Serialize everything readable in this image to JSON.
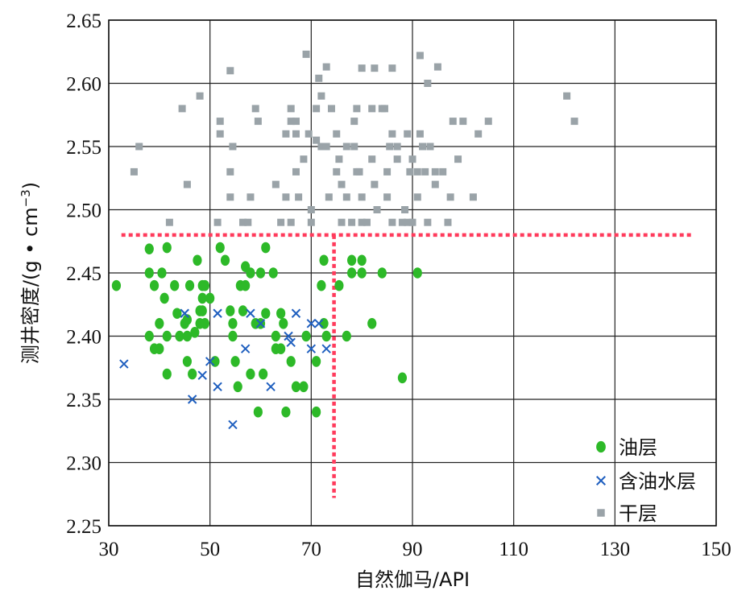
{
  "chart_data": {
    "type": "scatter",
    "xlabel": "自然伽马/API",
    "ylabel": "测井密度/(g·cm⁻³)",
    "ylabel_text": "测井密度/(g • cm",
    "ylabel_sup": "−3",
    "ylabel_close": ")",
    "xlim": [
      30,
      150
    ],
    "ylim": [
      2.25,
      2.65
    ],
    "xticks": [
      "30",
      "50",
      "70",
      "90",
      "110",
      "130",
      "150"
    ],
    "yticks": [
      "2.25",
      "2.30",
      "2.35",
      "2.40",
      "2.45",
      "2.50",
      "2.55",
      "2.60",
      "2.65"
    ],
    "grid": true,
    "legend_position": "bottom-right",
    "cutoff_lines": {
      "density": 2.48,
      "gamma": 74.5,
      "color": "#ff3b5c"
    },
    "series": [
      {
        "name": "油层",
        "marker": "circle",
        "color": "#2db928",
        "points": [
          [
            31.5,
            2.44
          ],
          [
            38,
            2.469
          ],
          [
            38,
            2.45
          ],
          [
            39,
            2.44
          ],
          [
            38,
            2.4
          ],
          [
            39,
            2.39
          ],
          [
            40,
            2.39
          ],
          [
            40,
            2.41
          ],
          [
            40.5,
            2.45
          ],
          [
            41,
            2.43
          ],
          [
            41.5,
            2.47
          ],
          [
            41.5,
            2.4
          ],
          [
            41.5,
            2.37
          ],
          [
            43,
            2.44
          ],
          [
            43.5,
            2.418
          ],
          [
            44,
            2.4
          ],
          [
            45,
            2.41
          ],
          [
            45.5,
            2.413
          ],
          [
            45.5,
            2.4
          ],
          [
            45.5,
            2.38
          ],
          [
            46,
            2.44
          ],
          [
            46.5,
            2.37
          ],
          [
            47,
            2.403
          ],
          [
            47.5,
            2.46
          ],
          [
            48,
            2.42
          ],
          [
            48,
            2.41
          ],
          [
            48.5,
            2.44
          ],
          [
            48.5,
            2.43
          ],
          [
            48.5,
            2.42
          ],
          [
            49,
            2.44
          ],
          [
            49,
            2.41
          ],
          [
            50,
            2.43
          ],
          [
            51,
            2.38
          ],
          [
            52,
            2.47
          ],
          [
            53,
            2.46
          ],
          [
            54,
            2.42
          ],
          [
            54.5,
            2.4
          ],
          [
            54.5,
            2.41
          ],
          [
            55,
            2.38
          ],
          [
            55.5,
            2.36
          ],
          [
            56,
            2.44
          ],
          [
            56.5,
            2.42
          ],
          [
            57,
            2.44
          ],
          [
            57,
            2.455
          ],
          [
            58,
            2.45
          ],
          [
            58,
            2.37
          ],
          [
            59,
            2.41
          ],
          [
            59.5,
            2.34
          ],
          [
            60,
            2.45
          ],
          [
            60,
            2.41
          ],
          [
            60.5,
            2.37
          ],
          [
            61,
            2.47
          ],
          [
            61,
            2.418
          ],
          [
            62.5,
            2.45
          ],
          [
            63,
            2.4
          ],
          [
            63,
            2.39
          ],
          [
            64,
            2.39
          ],
          [
            64,
            2.418
          ],
          [
            64.5,
            2.41
          ],
          [
            65,
            2.34
          ],
          [
            66,
            2.38
          ],
          [
            67,
            2.36
          ],
          [
            68.5,
            2.36
          ],
          [
            69,
            2.4
          ],
          [
            71,
            2.38
          ],
          [
            71,
            2.34
          ],
          [
            72,
            2.44
          ],
          [
            72.5,
            2.46
          ],
          [
            72.5,
            2.41
          ],
          [
            73,
            2.4
          ],
          [
            75.5,
            2.44
          ],
          [
            77,
            2.4
          ],
          [
            78,
            2.46
          ],
          [
            78,
            2.45
          ],
          [
            80,
            2.46
          ],
          [
            80,
            2.45
          ],
          [
            82,
            2.41
          ],
          [
            84,
            2.45
          ],
          [
            88,
            2.367
          ],
          [
            91,
            2.45
          ]
        ]
      },
      {
        "name": "含油水层",
        "marker": "cross",
        "color": "#1f5fbf",
        "points": [
          [
            33,
            2.378
          ],
          [
            45,
            2.418
          ],
          [
            46.5,
            2.35
          ],
          [
            48.5,
            2.369
          ],
          [
            50,
            2.38
          ],
          [
            51.5,
            2.418
          ],
          [
            51.5,
            2.36
          ],
          [
            54.5,
            2.33
          ],
          [
            57,
            2.39
          ],
          [
            58,
            2.418
          ],
          [
            60,
            2.41
          ],
          [
            62,
            2.36
          ],
          [
            65.5,
            2.4
          ],
          [
            66,
            2.395
          ],
          [
            67,
            2.418
          ],
          [
            70,
            2.41
          ],
          [
            70,
            2.39
          ],
          [
            71.5,
            2.41
          ],
          [
            73,
            2.39
          ]
        ]
      },
      {
        "name": "干层",
        "marker": "square",
        "color": "#9aa3a8",
        "points": [
          [
            35,
            2.53
          ],
          [
            36,
            2.55
          ],
          [
            42,
            2.49
          ],
          [
            44.5,
            2.58
          ],
          [
            45.5,
            2.52
          ],
          [
            48,
            2.59
          ],
          [
            51.5,
            2.49
          ],
          [
            52,
            2.57
          ],
          [
            52,
            2.56
          ],
          [
            54,
            2.61
          ],
          [
            54,
            2.53
          ],
          [
            54,
            2.51
          ],
          [
            54.5,
            2.55
          ],
          [
            56.5,
            2.49
          ],
          [
            57.5,
            2.49
          ],
          [
            58,
            2.51
          ],
          [
            59,
            2.58
          ],
          [
            59.5,
            2.57
          ],
          [
            63,
            2.52
          ],
          [
            64,
            2.49
          ],
          [
            65,
            2.51
          ],
          [
            65,
            2.56
          ],
          [
            66,
            2.58
          ],
          [
            66,
            2.49
          ],
          [
            66,
            2.57
          ],
          [
            67,
            2.53
          ],
          [
            67,
            2.57
          ],
          [
            67,
            2.56
          ],
          [
            67.5,
            2.51
          ],
          [
            68.5,
            2.54
          ],
          [
            69,
            2.623
          ],
          [
            69.5,
            2.56
          ],
          [
            70,
            2.5
          ],
          [
            70,
            2.49
          ],
          [
            71,
            2.58
          ],
          [
            71,
            2.555
          ],
          [
            71.5,
            2.604
          ],
          [
            72,
            2.59
          ],
          [
            72,
            2.55
          ],
          [
            73,
            2.613
          ],
          [
            73,
            2.55
          ],
          [
            73.5,
            2.51
          ],
          [
            74,
            2.58
          ],
          [
            75,
            2.56
          ],
          [
            75,
            2.53
          ],
          [
            75.5,
            2.54
          ],
          [
            76,
            2.52
          ],
          [
            76,
            2.49
          ],
          [
            77,
            2.55
          ],
          [
            77,
            2.51
          ],
          [
            78,
            2.49
          ],
          [
            78.5,
            2.57
          ],
          [
            78.5,
            2.55
          ],
          [
            79,
            2.58
          ],
          [
            79,
            2.53
          ],
          [
            79.5,
            2.53
          ],
          [
            80,
            2.612
          ],
          [
            80,
            2.51
          ],
          [
            80,
            2.49
          ],
          [
            81,
            2.49
          ],
          [
            82,
            2.58
          ],
          [
            82,
            2.54
          ],
          [
            82.5,
            2.612
          ],
          [
            82.5,
            2.52
          ],
          [
            83,
            2.5
          ],
          [
            84,
            2.58
          ],
          [
            84.5,
            2.58
          ],
          [
            85,
            2.53
          ],
          [
            85,
            2.51
          ],
          [
            85.5,
            2.55
          ],
          [
            86,
            2.612
          ],
          [
            86,
            2.49
          ],
          [
            86,
            2.56
          ],
          [
            87,
            2.55
          ],
          [
            87,
            2.54
          ],
          [
            88,
            2.49
          ],
          [
            88.5,
            2.5
          ],
          [
            89,
            2.49
          ],
          [
            89,
            2.56
          ],
          [
            89.5,
            2.53
          ],
          [
            90,
            2.49
          ],
          [
            90,
            2.54
          ],
          [
            91,
            2.51
          ],
          [
            91,
            2.53
          ],
          [
            91.5,
            2.622
          ],
          [
            91.5,
            2.56
          ],
          [
            92,
            2.55
          ],
          [
            92.5,
            2.53
          ],
          [
            93,
            2.6
          ],
          [
            93,
            2.49
          ],
          [
            93.5,
            2.55
          ],
          [
            94.5,
            2.53
          ],
          [
            94.5,
            2.52
          ],
          [
            95,
            2.613
          ],
          [
            96,
            2.53
          ],
          [
            97,
            2.49
          ],
          [
            97.5,
            2.51
          ],
          [
            98,
            2.57
          ],
          [
            99,
            2.54
          ],
          [
            100,
            2.57
          ],
          [
            102,
            2.51
          ],
          [
            103,
            2.56
          ],
          [
            105,
            2.57
          ],
          [
            120.5,
            2.59
          ],
          [
            122,
            2.57
          ]
        ]
      }
    ]
  }
}
